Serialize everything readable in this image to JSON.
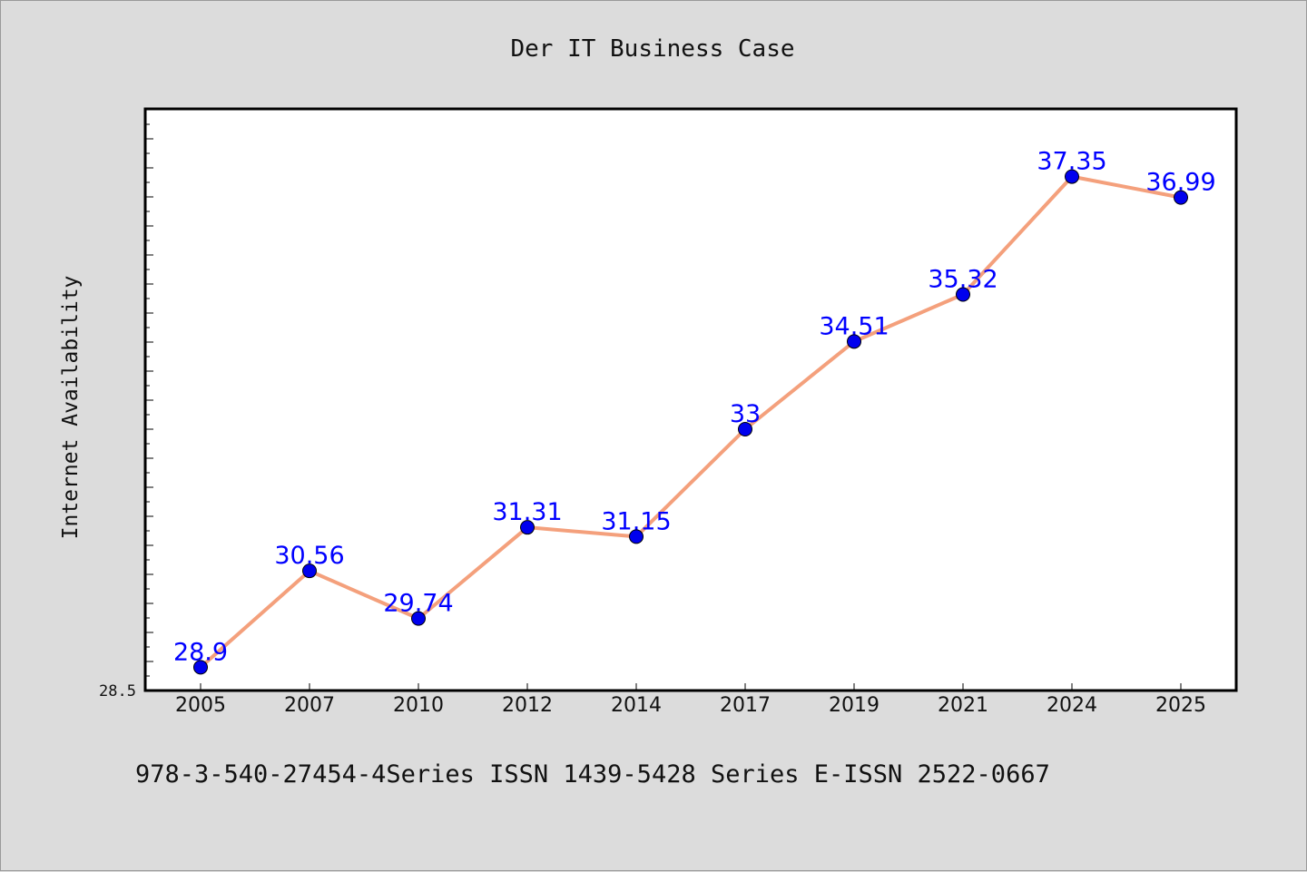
{
  "chart_data": {
    "type": "line",
    "title": "Der IT Business Case",
    "xlabel": "",
    "ylabel": "Internet Availability",
    "categories": [
      "2005",
      "2007",
      "2010",
      "2012",
      "2014",
      "2017",
      "2019",
      "2021",
      "2024",
      "2025"
    ],
    "series": [
      {
        "values": [
          28.9,
          30.56,
          29.74,
          31.31,
          31.15,
          33,
          34.51,
          35.32,
          37.35,
          36.99
        ],
        "labels": [
          "28.9",
          "30.56",
          "29.74",
          "31.31",
          "31.15",
          "33",
          "34.51",
          "35.32",
          "37.35",
          "36.99"
        ]
      }
    ],
    "ylim": [
      28.5,
      38.5
    ],
    "y_tick_label": "28.5",
    "grid": false,
    "legend": "none",
    "colors": {
      "line": "#f4a07c",
      "marker": "#0000ee",
      "label": "#0000ff",
      "background": "#dcdcdc",
      "plot_bg": "#ffffff"
    },
    "footer": "978-3-540-27454-4Series ISSN 1439-5428 Series E-ISSN 2522-0667"
  }
}
